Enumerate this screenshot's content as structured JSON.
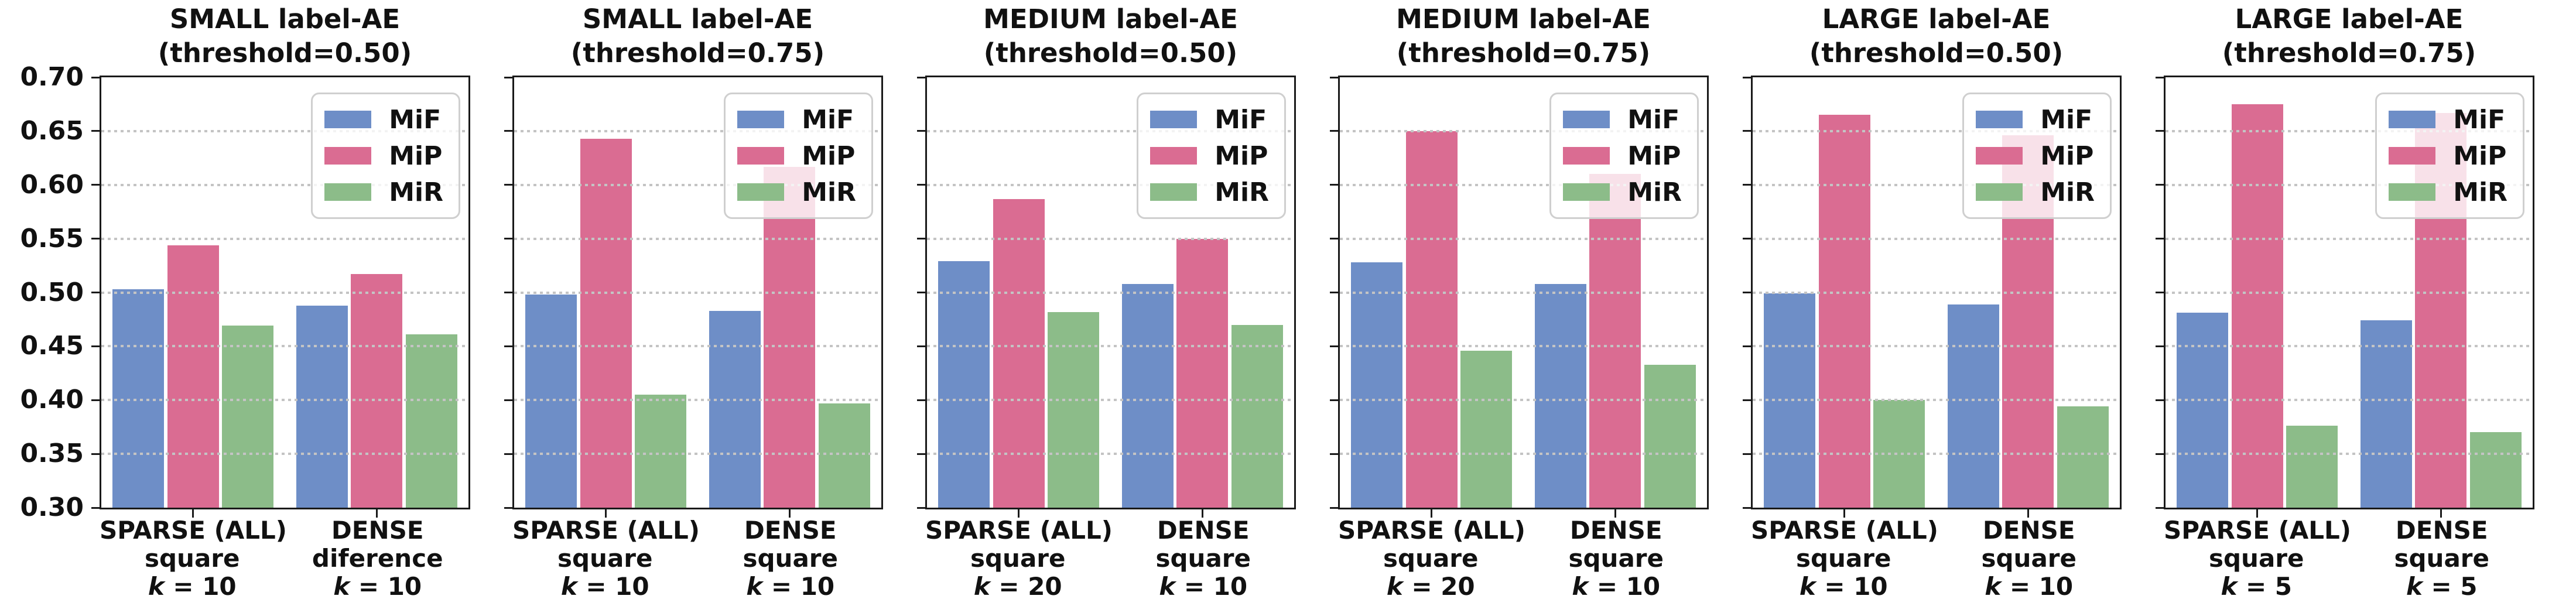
{
  "figure": {
    "background": "#ffffff"
  },
  "axis": {
    "y_ticks": [
      0.7,
      0.65,
      0.6,
      0.55,
      0.5,
      0.45,
      0.4,
      0.35,
      0.3
    ],
    "y_tick_labels": [
      "0.70",
      "0.65",
      "0.60",
      "0.55",
      "0.50",
      "0.45",
      "0.40",
      "0.35",
      "0.30"
    ],
    "gridlines": [
      0.65,
      0.6,
      0.55,
      0.5,
      0.45,
      0.4,
      0.35
    ],
    "grid_style": "dotted",
    "ylim": [
      0.3,
      0.7
    ]
  },
  "legend": {
    "position": "upper right",
    "entries": [
      {
        "label": "MiF",
        "color": "#6E8EC7"
      },
      {
        "label": "MiP",
        "color": "#DA6C92"
      },
      {
        "label": "MiR",
        "color": "#8CBC89"
      }
    ]
  },
  "colors": {
    "MiF": "#6E8EC7",
    "MiP": "#DA6C92",
    "MiR": "#8CBC89",
    "grid": "#c4c4c4",
    "spine": "#1a1a1a",
    "legend_border": "#cfcfcf"
  },
  "chart_data": [
    {
      "type": "bar",
      "title": "SMALL label-AE",
      "subtitle": "(threshold=0.50)",
      "ylim": [
        0.3,
        0.7
      ],
      "categories": [
        {
          "line1": "SPARSE (ALL)",
          "line2": "square",
          "k_label": "k = 10"
        },
        {
          "line1": "DENSE",
          "line2": "diference",
          "k_label": "k = 10"
        }
      ],
      "series": [
        {
          "name": "MiF",
          "values": [
            0.503,
            0.488
          ]
        },
        {
          "name": "MiP",
          "values": [
            0.544,
            0.517
          ]
        },
        {
          "name": "MiR",
          "values": [
            0.469,
            0.461
          ]
        }
      ]
    },
    {
      "type": "bar",
      "title": "SMALL label-AE",
      "subtitle": "(threshold=0.75)",
      "ylim": [
        0.3,
        0.7
      ],
      "categories": [
        {
          "line1": "SPARSE (ALL)",
          "line2": "square",
          "k_label": "k = 10"
        },
        {
          "line1": "DENSE",
          "line2": "square",
          "k_label": "k = 10"
        }
      ],
      "series": [
        {
          "name": "MiF",
          "values": [
            0.498,
            0.483
          ]
        },
        {
          "name": "MiP",
          "values": [
            0.643,
            0.617
          ]
        },
        {
          "name": "MiR",
          "values": [
            0.405,
            0.397
          ]
        }
      ]
    },
    {
      "type": "bar",
      "title": "MEDIUM label-AE",
      "subtitle": "(threshold=0.50)",
      "ylim": [
        0.3,
        0.7
      ],
      "categories": [
        {
          "line1": "SPARSE (ALL)",
          "line2": "square",
          "k_label": "k = 20"
        },
        {
          "line1": "DENSE",
          "line2": "square",
          "k_label": "k = 10"
        }
      ],
      "series": [
        {
          "name": "MiF",
          "values": [
            0.529,
            0.508
          ]
        },
        {
          "name": "MiP",
          "values": [
            0.587,
            0.55
          ]
        },
        {
          "name": "MiR",
          "values": [
            0.482,
            0.47
          ]
        }
      ]
    },
    {
      "type": "bar",
      "title": "MEDIUM label-AE",
      "subtitle": "(threshold=0.75)",
      "ylim": [
        0.3,
        0.7
      ],
      "categories": [
        {
          "line1": "SPARSE (ALL)",
          "line2": "square",
          "k_label": "k = 20"
        },
        {
          "line1": "DENSE",
          "line2": "square",
          "k_label": "k = 10"
        }
      ],
      "series": [
        {
          "name": "MiF",
          "values": [
            0.528,
            0.508
          ]
        },
        {
          "name": "MiP",
          "values": [
            0.65,
            0.61
          ]
        },
        {
          "name": "MiR",
          "values": [
            0.446,
            0.433
          ]
        }
      ]
    },
    {
      "type": "bar",
      "title": "LARGE label-AE",
      "subtitle": "(threshold=0.50)",
      "ylim": [
        0.3,
        0.7
      ],
      "categories": [
        {
          "line1": "SPARSE (ALL)",
          "line2": "square",
          "k_label": "k = 10"
        },
        {
          "line1": "DENSE",
          "line2": "square",
          "k_label": "k = 10"
        }
      ],
      "series": [
        {
          "name": "MiF",
          "values": [
            0.499,
            0.489
          ]
        },
        {
          "name": "MiP",
          "values": [
            0.665,
            0.646
          ]
        },
        {
          "name": "MiR",
          "values": [
            0.4,
            0.394
          ]
        }
      ]
    },
    {
      "type": "bar",
      "title": "LARGE label-AE",
      "subtitle": "(threshold=0.75)",
      "ylim": [
        0.3,
        0.7
      ],
      "categories": [
        {
          "line1": "SPARSE (ALL)",
          "line2": "square",
          "k_label": "k = 5"
        },
        {
          "line1": "DENSE",
          "line2": "square",
          "k_label": "k = 5"
        }
      ],
      "series": [
        {
          "name": "MiF",
          "values": [
            0.481,
            0.474
          ]
        },
        {
          "name": "MiP",
          "values": [
            0.675,
            0.667
          ]
        },
        {
          "name": "MiR",
          "values": [
            0.376,
            0.37
          ]
        }
      ]
    }
  ]
}
